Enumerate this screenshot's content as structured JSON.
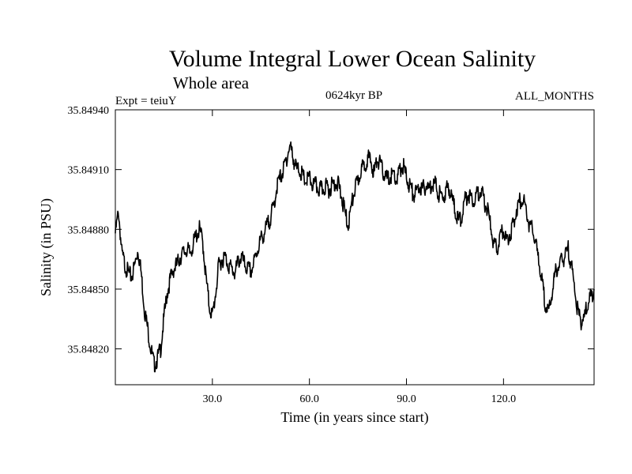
{
  "chart_data": {
    "type": "line",
    "title": "Volume Integral Lower Ocean Salinity",
    "subtitle": "Whole area",
    "experiment": "Expt = teiuY",
    "period": "0624kyr BP",
    "months": "ALL_MONTHS",
    "xlabel": "Time (in years since start)",
    "ylabel": "Salinity (in PSU)",
    "xlim": [
      0,
      148
    ],
    "ylim": [
      35.84802,
      35.8494
    ],
    "x_ticks": [
      30,
      60,
      90,
      120
    ],
    "x_tick_labels": [
      "30.0",
      "60.0",
      "90.0",
      "120.0"
    ],
    "y_ticks": [
      35.8482,
      35.8485,
      35.8488,
      35.8491,
      35.8494
    ],
    "y_tick_labels": [
      "35.84820",
      "35.84850",
      "35.84880",
      "35.84910",
      "35.84940"
    ],
    "grid": false,
    "series": [
      {
        "name": "Salinity",
        "x": [
          0,
          1,
          2,
          3,
          4,
          5,
          6,
          7,
          8,
          9,
          10,
          11,
          12,
          13,
          14,
          15,
          16,
          17,
          18,
          19,
          20,
          21,
          22,
          23,
          24,
          25,
          26,
          27,
          28,
          29,
          30,
          31,
          32,
          33,
          34,
          35,
          36,
          37,
          38,
          39,
          40,
          41,
          42,
          43,
          44,
          45,
          46,
          47,
          48,
          49,
          50,
          51,
          52,
          53,
          54,
          55,
          56,
          57,
          58,
          59,
          60,
          61,
          62,
          63,
          64,
          65,
          66,
          67,
          68,
          69,
          70,
          71,
          72,
          73,
          74,
          75,
          76,
          77,
          78,
          79,
          80,
          81,
          82,
          83,
          84,
          85,
          86,
          87,
          88,
          89,
          90,
          91,
          92,
          93,
          94,
          95,
          96,
          97,
          98,
          99,
          100,
          101,
          102,
          103,
          104,
          105,
          106,
          107,
          108,
          109,
          110,
          111,
          112,
          113,
          114,
          115,
          116,
          117,
          118,
          119,
          120,
          121,
          122,
          123,
          124,
          125,
          126,
          127,
          128,
          129,
          130,
          131,
          132,
          133,
          134,
          135,
          136,
          137,
          138,
          139,
          140,
          141,
          142,
          143,
          144,
          145,
          146,
          147,
          148
        ],
        "values": [
          35.84878,
          35.84889,
          35.84868,
          35.84862,
          35.84858,
          35.84856,
          35.84862,
          35.8487,
          35.84858,
          35.8484,
          35.8483,
          35.8482,
          35.84812,
          35.84815,
          35.8482,
          35.84835,
          35.84848,
          35.84855,
          35.8486,
          35.84862,
          35.84866,
          35.84868,
          35.8487,
          35.84868,
          35.84872,
          35.84877,
          35.8488,
          35.84874,
          35.84856,
          35.84842,
          35.84836,
          35.84848,
          35.84862,
          35.84865,
          35.84866,
          35.84862,
          35.8486,
          35.84858,
          35.84864,
          35.84866,
          35.84862,
          35.8486,
          35.84859,
          35.84864,
          35.8487,
          35.84875,
          35.84878,
          35.84882,
          35.84886,
          35.84892,
          35.84902,
          35.84906,
          35.8491,
          35.84916,
          35.84922,
          35.84916,
          35.8491,
          35.8491,
          35.84906,
          35.84904,
          35.84906,
          35.84902,
          35.84902,
          35.849,
          35.849,
          35.84902,
          35.849,
          35.84902,
          35.84904,
          35.84902,
          35.84896,
          35.84888,
          35.84882,
          35.84892,
          35.849,
          35.84904,
          35.8491,
          35.84912,
          35.84916,
          35.84914,
          35.84908,
          35.84916,
          35.84912,
          35.84908,
          35.84905,
          35.84906,
          35.84908,
          35.84904,
          35.8491,
          35.84912,
          35.84906,
          35.84902,
          35.84898,
          35.84898,
          35.84902,
          35.849,
          35.84902,
          35.849,
          35.84904,
          35.84902,
          35.84898,
          35.84896,
          35.84898,
          35.84902,
          35.84896,
          35.8489,
          35.84884,
          35.84886,
          35.84894,
          35.84898,
          35.84896,
          35.84895,
          35.84898,
          35.849,
          35.84894,
          35.8489,
          35.84882,
          35.84872,
          35.8487,
          35.84876,
          35.8488,
          35.84874,
          35.84878,
          35.84882,
          35.8489,
          35.84894,
          35.84896,
          35.8489,
          35.84882,
          35.8488,
          35.84872,
          35.84864,
          35.84852,
          35.84842,
          35.84838,
          35.84848,
          35.84858,
          35.84862,
          35.84864,
          35.84866,
          35.8487,
          35.84862,
          35.8485,
          35.84838,
          35.84834,
          35.84836,
          35.84842,
          35.84846,
          35.8485
        ]
      }
    ]
  }
}
